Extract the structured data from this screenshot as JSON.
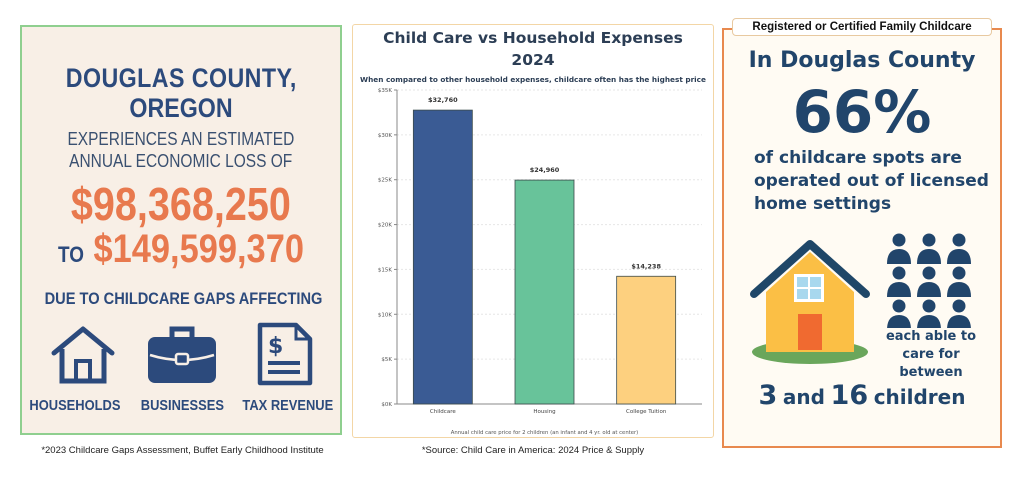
{
  "left_panel": {
    "title_line1": "DOUGLAS COUNTY,",
    "title_line2": "OREGON",
    "sub_line1": "EXPERIENCES AN ESTIMATED",
    "sub_line2": "ANNUAL ECONOMIC LOSS OF",
    "amount_low": "$98,368,250",
    "to_word": "TO",
    "amount_high": "$149,599,370",
    "due_to": "DUE TO CHILDCARE GAPS AFFECTING",
    "categories": [
      {
        "icon": "house-icon",
        "label": "HOUSEHOLDS"
      },
      {
        "icon": "briefcase-icon",
        "label": "BUSINESSES"
      },
      {
        "icon": "tax-document-icon",
        "label": "TAX REVENUE"
      }
    ],
    "footnote": "*2023 Childcare Gaps Assessment, Buffet Early Childhood Institute",
    "colors": {
      "navy": "#2c4a7c",
      "orange": "#e8794e",
      "background": "#f8efe6",
      "border": "#8fcf8f"
    }
  },
  "chart_data": {
    "type": "bar",
    "title": "Child Care vs Household Expenses",
    "title_year": "2024",
    "subtitle": "When compared to other household expenses, childcare often has the highest price",
    "categories": [
      "Childcare",
      "Housing",
      "College Tuition"
    ],
    "values": [
      32760,
      24960,
      14238
    ],
    "data_labels": [
      "$32,760",
      "$24,960",
      "$14,238"
    ],
    "colors": [
      "#3a5b94",
      "#68c39a",
      "#fdd07f"
    ],
    "xlabel": "Annual child care price for 2 children (an infant and 4 yr. old at center)",
    "ylabel": "",
    "ylim": [
      0,
      35000
    ],
    "yticks": [
      0,
      5000,
      10000,
      15000,
      20000,
      25000,
      30000,
      35000
    ],
    "ytick_labels": [
      "$0K",
      "$5K",
      "$10K",
      "$15K",
      "$20K",
      "$25K",
      "$30K",
      "$35K"
    ],
    "grid": true,
    "footnote": "*Source: Child Care in America: 2024 Price & Supply"
  },
  "right_panel": {
    "tab_label": "Registered or Certified Family Childcare",
    "heading": "In Douglas County",
    "percent": "66%",
    "desc_line1": "of childcare spots are",
    "desc_line2": "operated out of licensed",
    "desc_line3": "home settings",
    "each_line1": "each able to",
    "each_line2": "care for between",
    "range_low": "3",
    "range_and": "and",
    "range_high": "16",
    "range_unit": "children",
    "colors": {
      "navy": "#21456b",
      "border": "#e8894e",
      "house": "#fbbf45",
      "door": "#f06a30",
      "grass": "#6aa65b"
    }
  }
}
